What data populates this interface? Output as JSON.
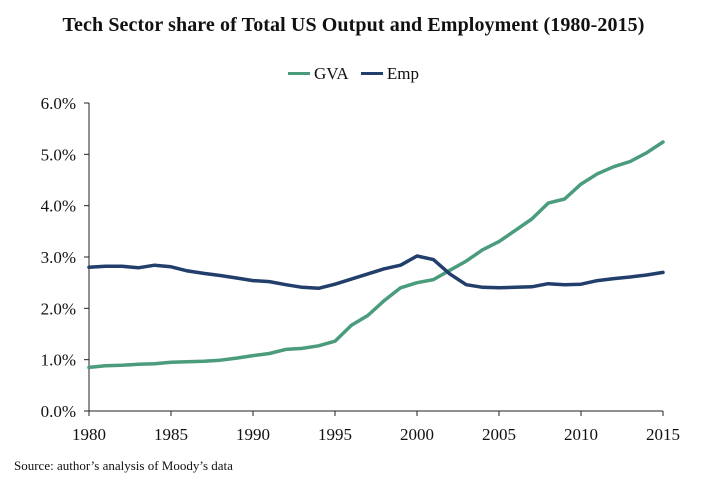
{
  "chart_data": {
    "type": "line",
    "title": "Tech Sector share of Total US Output and Employment (1980-2015)",
    "xlabel": "",
    "ylabel": "",
    "xlim": [
      1980,
      2015
    ],
    "ylim": [
      0,
      6
    ],
    "x_ticks": [
      "1980",
      "1985",
      "1990",
      "1995",
      "2000",
      "2005",
      "2010",
      "2015"
    ],
    "y_ticks": [
      "0.0%",
      "1.0%",
      "2.0%",
      "3.0%",
      "4.0%",
      "5.0%",
      "6.0%"
    ],
    "legend_position": "top-center",
    "grid": false,
    "x": [
      1980,
      1981,
      1982,
      1983,
      1984,
      1985,
      1986,
      1987,
      1988,
      1989,
      1990,
      1991,
      1992,
      1993,
      1994,
      1995,
      1996,
      1997,
      1998,
      1999,
      2000,
      2001,
      2002,
      2003,
      2004,
      2005,
      2006,
      2007,
      2008,
      2009,
      2010,
      2011,
      2012,
      2013,
      2014,
      2015
    ],
    "series": [
      {
        "name": "GVA",
        "color": "#4a9c7c",
        "values": [
          0.85,
          0.88,
          0.89,
          0.91,
          0.92,
          0.95,
          0.96,
          0.97,
          0.99,
          1.03,
          1.08,
          1.12,
          1.2,
          1.22,
          1.27,
          1.36,
          1.67,
          1.86,
          2.15,
          2.4,
          2.5,
          2.56,
          2.74,
          2.92,
          3.14,
          3.3,
          3.52,
          3.74,
          4.05,
          4.13,
          4.42,
          4.62,
          4.76,
          4.86,
          5.03,
          5.24
        ]
      },
      {
        "name": "Emp",
        "color": "#223f6c",
        "values": [
          2.8,
          2.82,
          2.82,
          2.79,
          2.84,
          2.81,
          2.73,
          2.68,
          2.64,
          2.59,
          2.54,
          2.52,
          2.46,
          2.41,
          2.39,
          2.47,
          2.57,
          2.67,
          2.77,
          2.84,
          3.02,
          2.95,
          2.67,
          2.46,
          2.41,
          2.4,
          2.41,
          2.42,
          2.48,
          2.46,
          2.47,
          2.54,
          2.58,
          2.61,
          2.65,
          2.7
        ]
      }
    ]
  },
  "source": "Source: author’s analysis of Moody’s data"
}
